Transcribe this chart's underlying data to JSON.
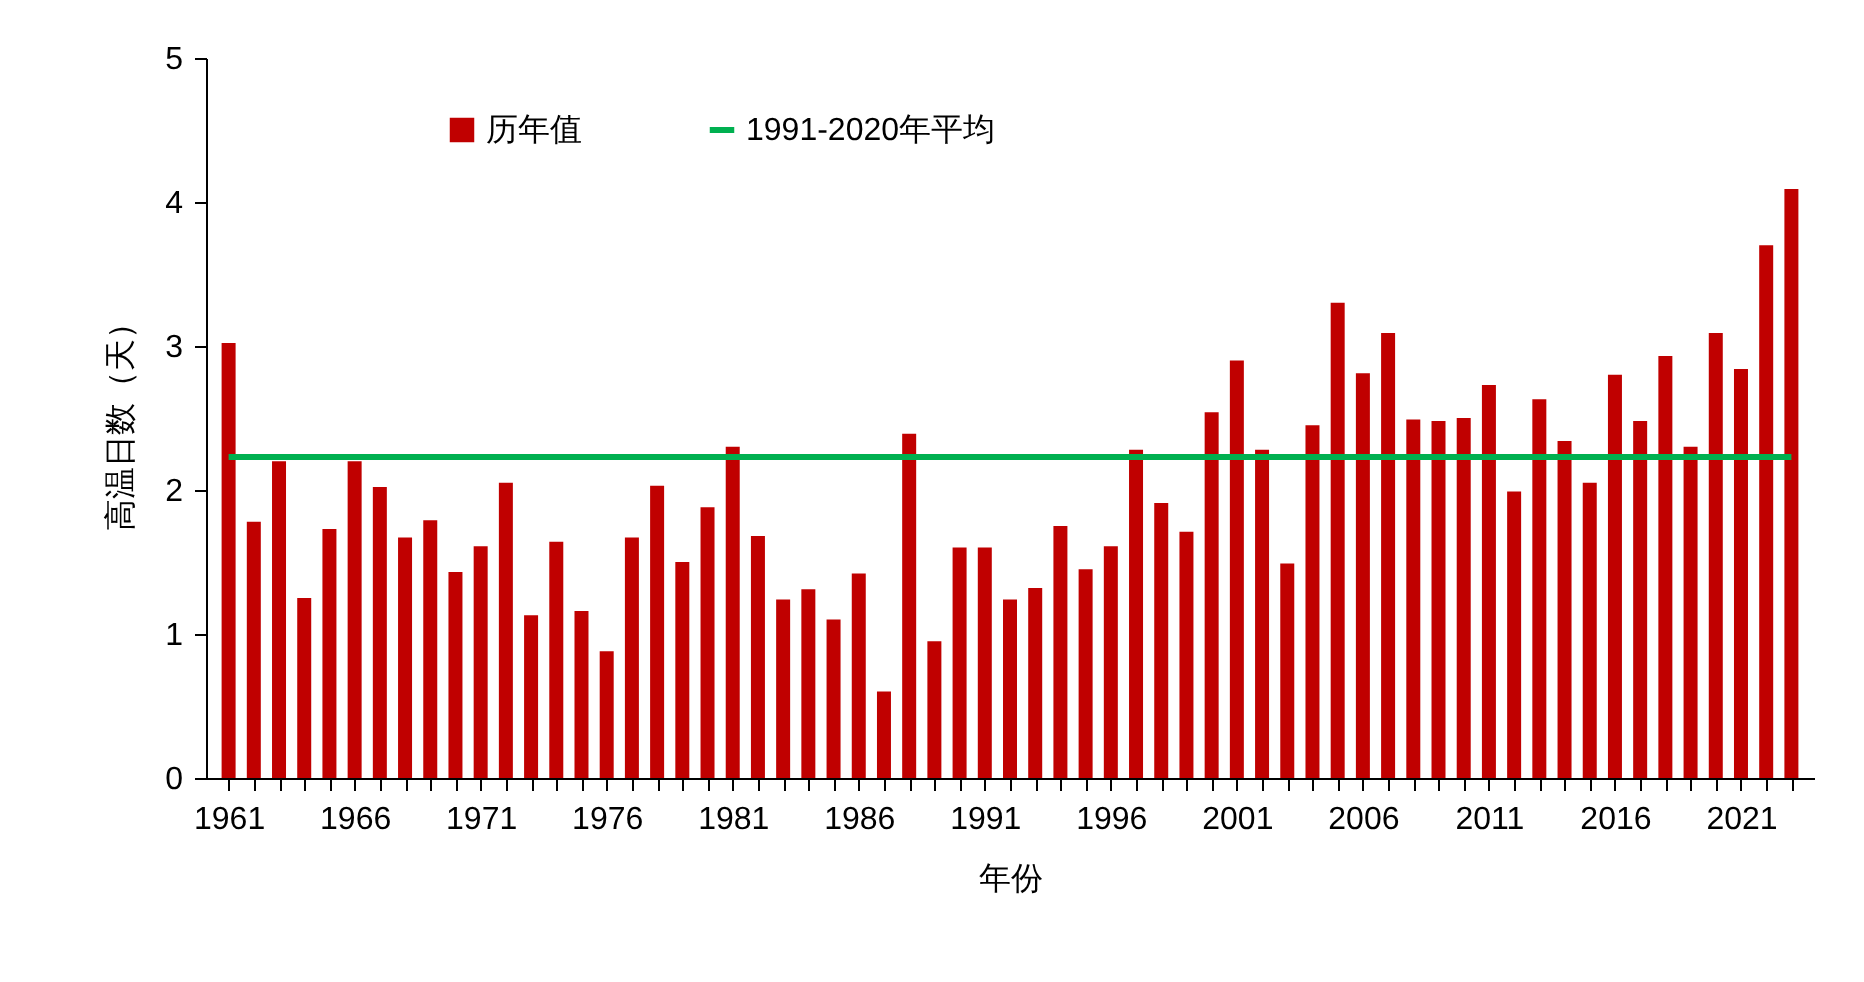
{
  "chart_data": {
    "type": "bar",
    "xlabel": "年份",
    "ylabel": "高温日数（天）",
    "x": [
      1961,
      1962,
      1963,
      1964,
      1965,
      1966,
      1967,
      1968,
      1969,
      1970,
      1971,
      1972,
      1973,
      1974,
      1975,
      1976,
      1977,
      1978,
      1979,
      1980,
      1981,
      1982,
      1983,
      1984,
      1985,
      1986,
      1987,
      1988,
      1989,
      1990,
      1991,
      1992,
      1993,
      1994,
      1995,
      1996,
      1997,
      1998,
      1999,
      2000,
      2001,
      2002,
      2003,
      2004,
      2005,
      2006,
      2007,
      2008,
      2009,
      2010,
      2011,
      2012,
      2013,
      2014,
      2015,
      2016,
      2017,
      2018,
      2019,
      2020,
      2021,
      2022,
      2023
    ],
    "series": [
      {
        "name": "历年值",
        "color": "#c00000",
        "values": [
          3.02,
          1.78,
          2.2,
          1.25,
          1.73,
          2.2,
          2.02,
          1.67,
          1.79,
          1.43,
          1.61,
          2.05,
          1.13,
          1.64,
          1.16,
          0.88,
          1.67,
          2.03,
          1.5,
          1.88,
          2.3,
          1.68,
          1.24,
          1.31,
          1.1,
          1.42,
          0.6,
          2.39,
          0.95,
          1.6,
          1.6,
          1.24,
          1.32,
          1.75,
          1.45,
          1.61,
          2.28,
          1.91,
          1.71,
          2.54,
          2.9,
          2.28,
          1.49,
          2.45,
          3.3,
          2.81,
          3.09,
          2.49,
          2.48,
          2.5,
          2.73,
          1.99,
          2.63,
          2.34,
          2.05,
          2.8,
          2.48,
          2.93,
          2.3,
          3.09,
          2.84,
          3.7,
          4.09
        ]
      },
      {
        "name": "1991-2020年平均",
        "type": "line",
        "color": "#00b050",
        "x": [
          1961,
          2023
        ],
        "values": [
          2.23,
          2.23
        ]
      }
    ],
    "xlim": [
      1960.5,
      2023.5
    ],
    "xticks": [
      1961,
      {
        "value": 1962,
        "label": null
      },
      {
        "value": 1963,
        "label": null
      },
      {
        "value": 1964,
        "label": null
      },
      {
        "value": 1965,
        "label": null
      },
      1966,
      {
        "value": 1967,
        "label": null
      },
      {
        "value": 1968,
        "label": null
      },
      {
        "value": 1969,
        "label": null
      },
      {
        "value": 1970,
        "label": null
      },
      1971,
      {
        "value": 1972,
        "label": null
      },
      {
        "value": 1973,
        "label": null
      },
      {
        "value": 1974,
        "label": null
      },
      {
        "value": 1975,
        "label": null
      },
      1976,
      {
        "value": 1977,
        "label": null
      },
      {
        "value": 1978,
        "label": null
      },
      {
        "value": 1979,
        "label": null
      },
      {
        "value": 1980,
        "label": null
      },
      1981,
      {
        "value": 1982,
        "label": null
      },
      {
        "value": 1983,
        "label": null
      },
      {
        "value": 1984,
        "label": null
      },
      {
        "value": 1985,
        "label": null
      },
      1986,
      {
        "value": 1987,
        "label": null
      },
      {
        "value": 1988,
        "label": null
      },
      {
        "value": 1989,
        "label": null
      },
      {
        "value": 1990,
        "label": null
      },
      1991,
      {
        "value": 1992,
        "label": null
      },
      {
        "value": 1993,
        "label": null
      },
      {
        "value": 1994,
        "label": null
      },
      {
        "value": 1995,
        "label": null
      },
      1996,
      {
        "value": 1997,
        "label": null
      },
      {
        "value": 1998,
        "label": null
      },
      {
        "value": 1999,
        "label": null
      },
      {
        "value": 2000,
        "label": null
      },
      2001,
      {
        "value": 2002,
        "label": null
      },
      {
        "value": 2003,
        "label": null
      },
      {
        "value": 2004,
        "label": null
      },
      {
        "value": 2005,
        "label": null
      },
      2006,
      {
        "value": 2007,
        "label": null
      },
      {
        "value": 2008,
        "label": null
      },
      {
        "value": 2009,
        "label": null
      },
      {
        "value": 2010,
        "label": null
      },
      2011,
      {
        "value": 2012,
        "label": null
      },
      {
        "value": 2013,
        "label": null
      },
      {
        "value": 2014,
        "label": null
      },
      {
        "value": 2015,
        "label": null
      },
      2016,
      {
        "value": 2017,
        "label": null
      },
      {
        "value": 2018,
        "label": null
      },
      {
        "value": 2019,
        "label": null
      },
      {
        "value": 2020,
        "label": null
      },
      2021,
      {
        "value": 2022,
        "label": null
      },
      {
        "value": 2023,
        "label": null
      }
    ],
    "ylim": [
      0,
      5
    ],
    "yticks": [
      0,
      1,
      2,
      3,
      4,
      5
    ],
    "grid": false,
    "legend": "top",
    "marker": "none",
    "line_style": "solid"
  }
}
